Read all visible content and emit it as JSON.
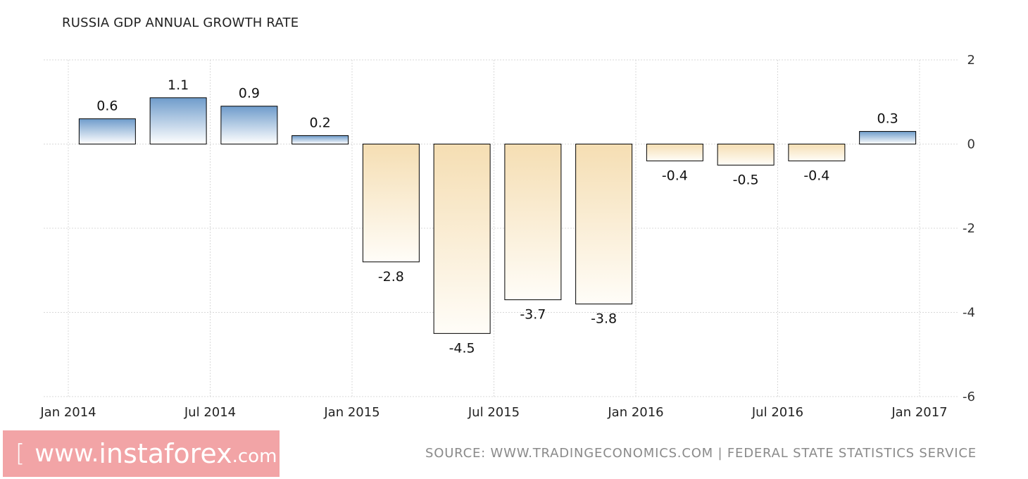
{
  "chart_data": {
    "type": "bar",
    "title": "RUSSIA GDP ANNUAL GROWTH RATE",
    "categories": [
      "2014 Q1",
      "2014 Q2",
      "2014 Q3",
      "2014 Q4",
      "2015 Q1",
      "2015 Q2",
      "2015 Q3",
      "2015 Q4",
      "2016 Q1",
      "2016 Q2",
      "2016 Q3",
      "2016 Q4"
    ],
    "values": [
      0.6,
      1.1,
      0.9,
      0.2,
      -2.8,
      -4.5,
      -3.7,
      -3.8,
      -0.4,
      -0.5,
      -0.4,
      0.3
    ],
    "data_labels": [
      "0.6",
      "1.1",
      "0.9",
      "0.2",
      "-2.8",
      "-4.5",
      "-3.7",
      "-3.8",
      "-0.4",
      "-0.5",
      "-0.4",
      "0.3"
    ],
    "x_ticks": [
      "Jan 2014",
      "Jul 2014",
      "Jan 2015",
      "Jul 2015",
      "Jan 2016",
      "Jul 2016",
      "Jan 2017"
    ],
    "y_ticks": [
      "2",
      "0",
      "-2",
      "-4",
      "-6"
    ],
    "ylim": [
      -6,
      2
    ],
    "xlabel": "",
    "ylabel": "",
    "grid": true,
    "y_axis_position": "right",
    "colors": {
      "positive_top": "#6f9ccb",
      "positive_bottom": "#ffffff",
      "negative_top": "#f5deb3",
      "negative_bottom": "#fffdf8",
      "bar_border": "#000000",
      "grid": "#d8d8d8"
    }
  },
  "source_text": "SOURCE:  WWW.TRADINGECONOMICS.COM  |  FEDERAL  STATE  STATISTICS  SERVICE",
  "watermark": {
    "bracket_left": "[",
    "www": "www.",
    "brand": "instaforex",
    "tld": ".com",
    "bracket_right": "]",
    "color": "#f2a4a6"
  }
}
